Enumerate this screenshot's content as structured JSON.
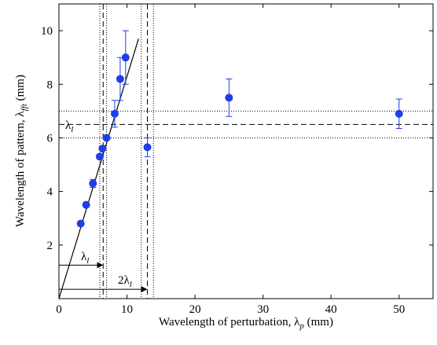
{
  "chart_data": {
    "type": "scatter",
    "xlabel": "Wavelength of perturbation, λ_p (mm)",
    "ylabel": "Wavelength of pattern, λ_fft (mm)",
    "xlim": [
      0,
      55
    ],
    "ylim": [
      0,
      11
    ],
    "xticks": [
      0,
      10,
      20,
      30,
      40,
      50
    ],
    "yticks": [
      2,
      4,
      6,
      8,
      10
    ],
    "grid": false,
    "marker_color": "#1f3fe6",
    "series": [
      {
        "points": [
          {
            "x": 3.2,
            "y": 2.8
          },
          {
            "x": 4.0,
            "y": 3.5
          },
          {
            "x": 5.0,
            "y": 4.3,
            "err": 0.15
          },
          {
            "x": 6.0,
            "y": 5.3
          },
          {
            "x": 6.4,
            "y": 5.6
          },
          {
            "x": 7.0,
            "y": 6.0
          },
          {
            "x": 8.2,
            "y": 6.9,
            "err": 0.5
          },
          {
            "x": 9.0,
            "y": 8.2,
            "err": 0.8
          },
          {
            "x": 9.8,
            "y": 9.0,
            "err": 1.0
          },
          {
            "x": 13.0,
            "y": 5.65,
            "err": 0.35
          },
          {
            "x": 25.0,
            "y": 7.5,
            "err": 0.7
          },
          {
            "x": 50.0,
            "y": 6.9,
            "err": 0.55
          }
        ]
      }
    ],
    "fit_line": {
      "x": [
        0,
        11.7
      ],
      "y": [
        0,
        9.7
      ]
    },
    "reference_lines": {
      "lambda_l": 6.5,
      "lambda_l_band": [
        6.0,
        7.0
      ],
      "two_lambda_l": 13.0,
      "two_lambda_l_band": [
        12.1,
        13.9
      ]
    },
    "annotations": {
      "lambda_l_label": "λ_l",
      "lambda_l_arrow_label": "λ_l",
      "two_lambda_l_arrow_label": "2λ_l"
    }
  }
}
